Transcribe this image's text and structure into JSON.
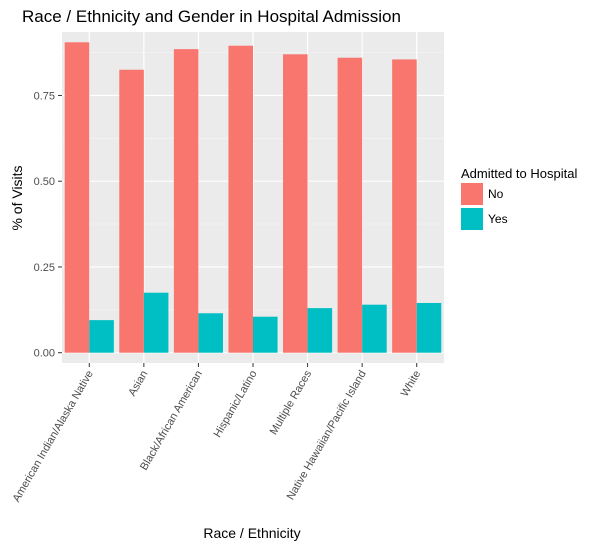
{
  "chart_data": {
    "type": "bar",
    "title": "Race / Ethnicity and Gender in Hospital Admission",
    "xlabel": "Race / Ethnicity",
    "ylabel": "% of Visits",
    "categories": [
      "American Indian/Alaska Native",
      "Asian",
      "Black/African American",
      "Hispanic/Latino",
      "Multiple Races",
      "Native Hawaiian/Pacific Island",
      "White"
    ],
    "series": [
      {
        "name": "No",
        "color": "#f8766d",
        "values": [
          0.905,
          0.825,
          0.885,
          0.895,
          0.87,
          0.86,
          0.855
        ]
      },
      {
        "name": "Yes",
        "color": "#00bfc4",
        "values": [
          0.095,
          0.175,
          0.115,
          0.105,
          0.13,
          0.14,
          0.145
        ]
      }
    ],
    "yticks": [
      "0.00",
      "0.25",
      "0.50",
      "0.75"
    ],
    "ylim": [
      -0.03,
      0.935
    ],
    "legend": {
      "title": "Admitted to Hospital",
      "position": "right"
    },
    "grid": true,
    "background": "#ebebeb"
  }
}
